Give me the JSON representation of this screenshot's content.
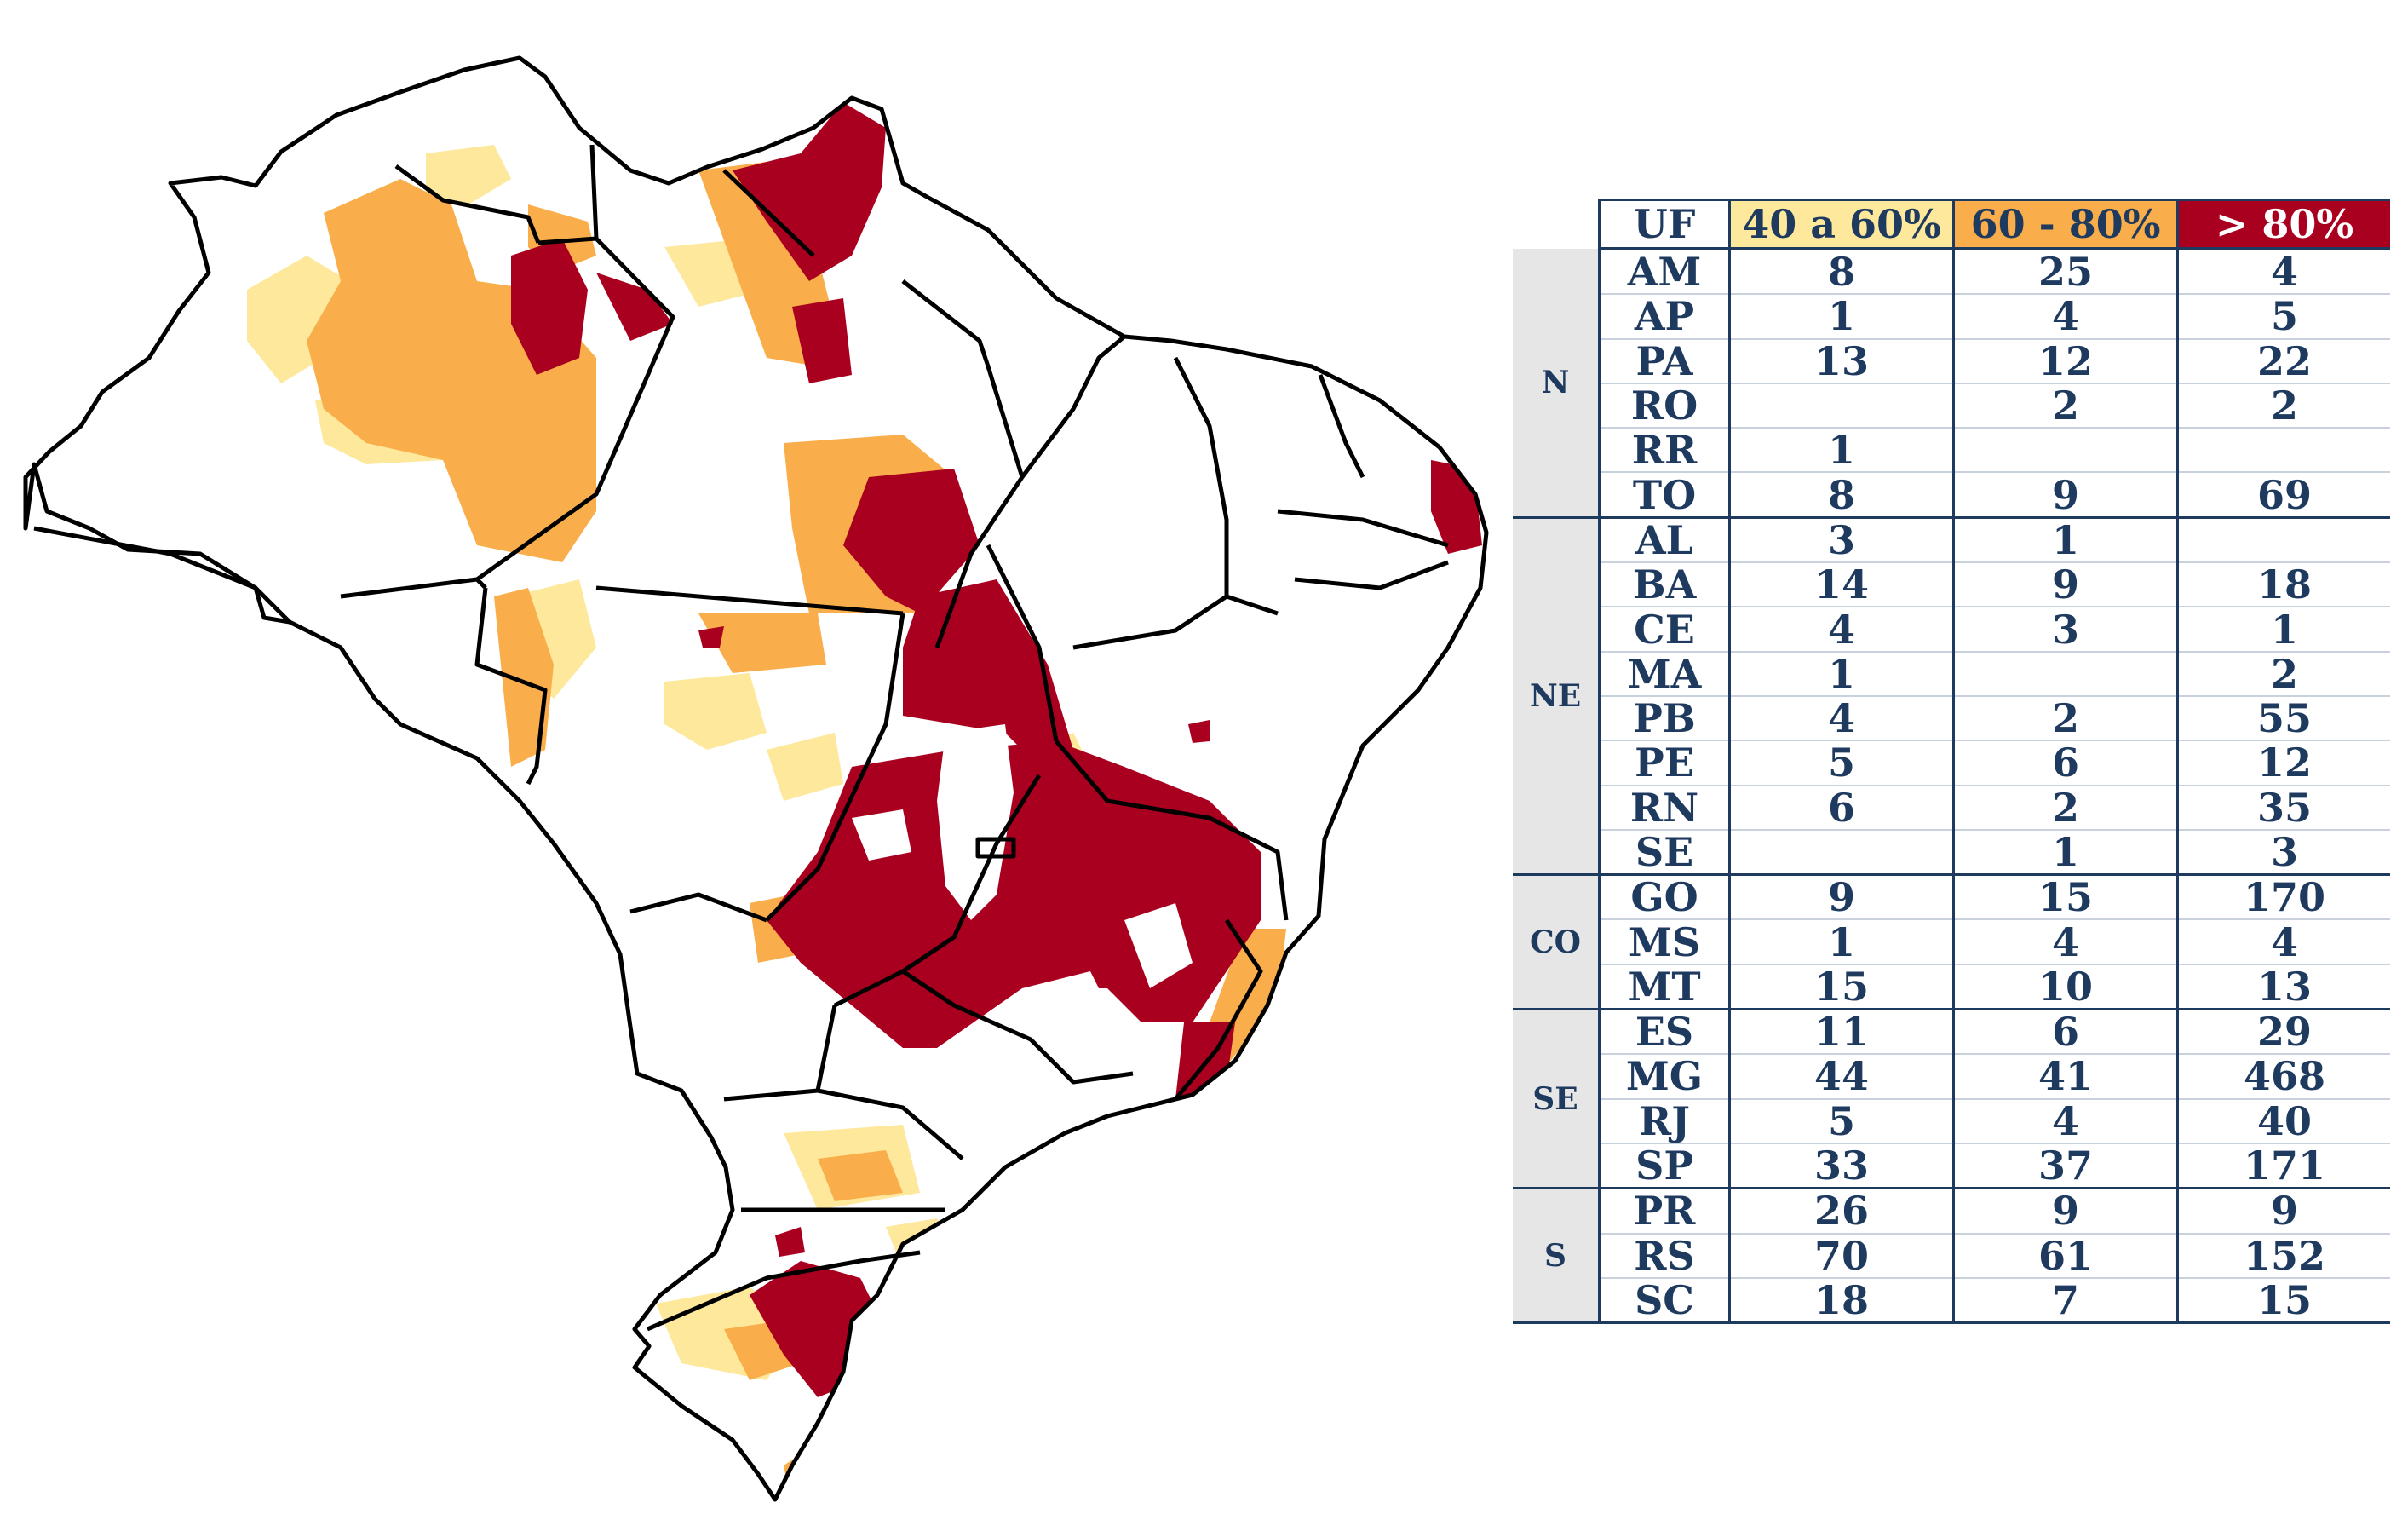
{
  "colors": {
    "low": "#fde89c",
    "mid": "#f9ae4b",
    "high": "#a9001f",
    "border": "#000000",
    "table_text": "#1f3a5f"
  },
  "table": {
    "headers": [
      "UF",
      "40 a 60%",
      "60 - 80%",
      "> 80%"
    ],
    "groups": [
      {
        "region": "N",
        "rows": [
          [
            "AM",
            "8",
            "25",
            "4"
          ],
          [
            "AP",
            "1",
            "4",
            "5"
          ],
          [
            "PA",
            "13",
            "12",
            "22"
          ],
          [
            "RO",
            "",
            "2",
            "2"
          ],
          [
            "RR",
            "1",
            "",
            ""
          ],
          [
            "TO",
            "8",
            "9",
            "69"
          ]
        ]
      },
      {
        "region": "NE",
        "rows": [
          [
            "AL",
            "3",
            "1",
            ""
          ],
          [
            "BA",
            "14",
            "9",
            "18"
          ],
          [
            "CE",
            "4",
            "3",
            "1"
          ],
          [
            "MA",
            "1",
            "",
            "2"
          ],
          [
            "PB",
            "4",
            "2",
            "55"
          ],
          [
            "PE",
            "5",
            "6",
            "12"
          ],
          [
            "RN",
            "6",
            "2",
            "35"
          ],
          [
            "SE",
            "",
            "1",
            "3"
          ]
        ]
      },
      {
        "region": "CO",
        "rows": [
          [
            "GO",
            "9",
            "15",
            "170"
          ],
          [
            "MS",
            "1",
            "4",
            "4"
          ],
          [
            "MT",
            "15",
            "10",
            "13"
          ]
        ]
      },
      {
        "region": "SE",
        "rows": [
          [
            "ES",
            "11",
            "6",
            "29"
          ],
          [
            "MG",
            "44",
            "41",
            "468"
          ],
          [
            "RJ",
            "5",
            "4",
            "40"
          ],
          [
            "SP",
            "33",
            "37",
            "171"
          ]
        ]
      },
      {
        "region": "S",
        "rows": [
          [
            "PR",
            "26",
            "9",
            "9"
          ],
          [
            "RS",
            "70",
            "61",
            "152"
          ],
          [
            "SC",
            "18",
            "7",
            "15"
          ]
        ]
      }
    ]
  }
}
